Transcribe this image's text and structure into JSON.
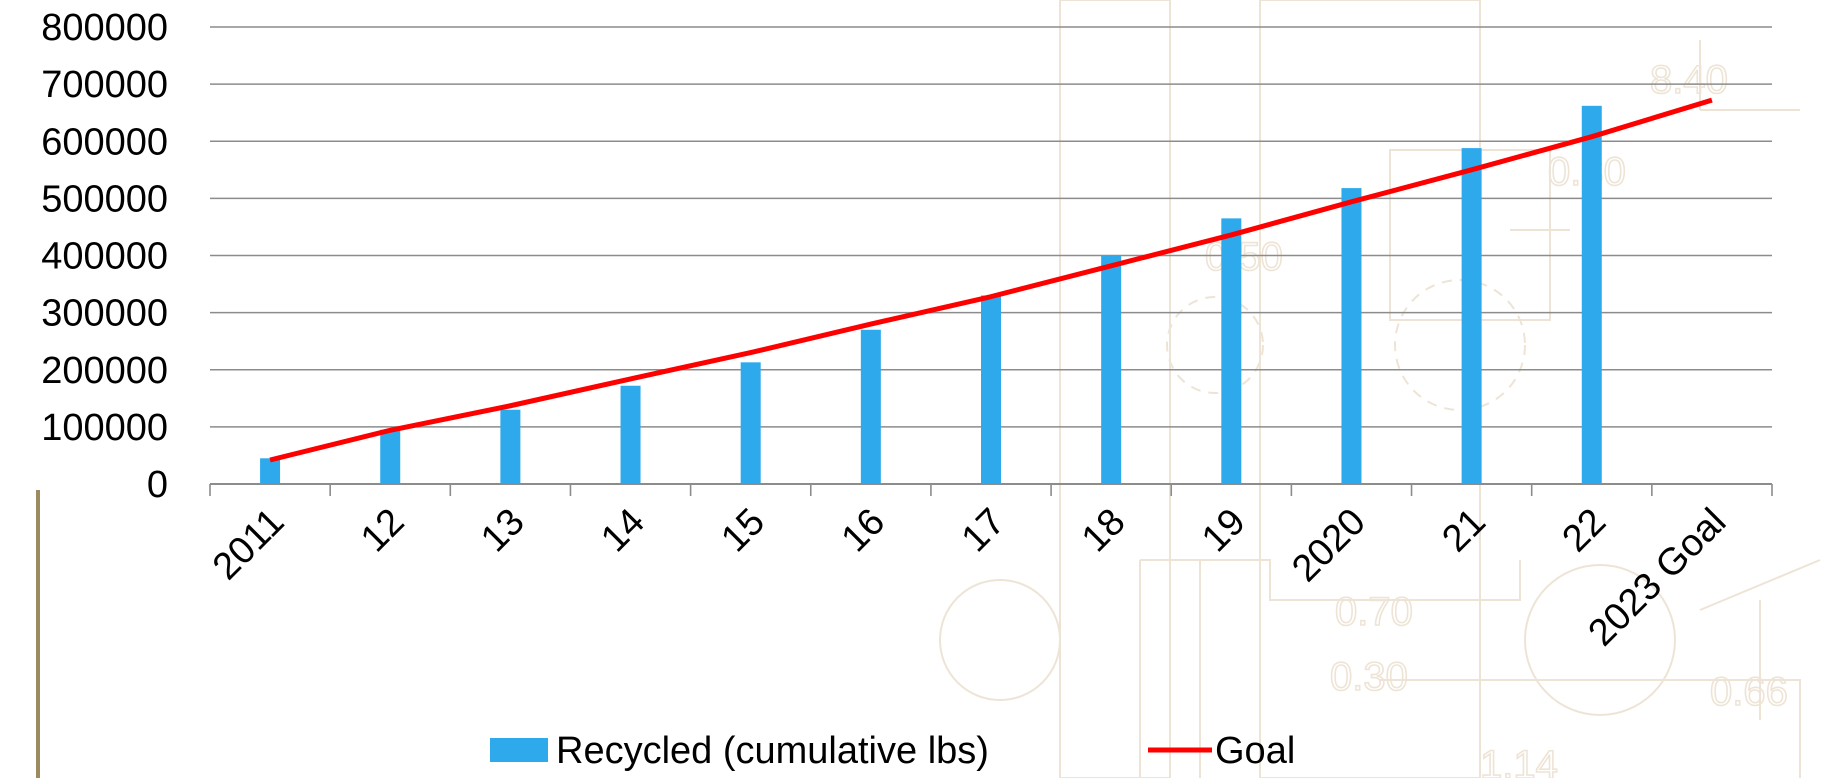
{
  "chart_data": {
    "type": "bar",
    "title": "",
    "xlabel": "",
    "ylabel": "",
    "categories": [
      "2011",
      "12",
      "13",
      "14",
      "15",
      "16",
      "17",
      "18",
      "19",
      "2020",
      "21",
      "22",
      "2023 Goal"
    ],
    "y_ticks": [
      "0",
      "100000",
      "200000",
      "300000",
      "400000",
      "500000",
      "600000",
      "700000",
      "800000"
    ],
    "ylim": [
      0,
      800000
    ],
    "grid": true,
    "legend_position": "bottom",
    "series": [
      {
        "name": "Recycled (cumulative lbs)",
        "type": "bar",
        "color": "#2eaaec",
        "values": [
          45000,
          95000,
          130000,
          172000,
          213000,
          270000,
          330000,
          400000,
          465000,
          518000,
          588000,
          662000,
          null
        ]
      },
      {
        "name": "Goal",
        "type": "line",
        "color": "#ff0000",
        "values": [
          42000,
          94000,
          137000,
          184000,
          230000,
          280000,
          328000,
          382000,
          436000,
          494000,
          550000,
          608000,
          672000
        ]
      }
    ]
  },
  "background_watermark": {
    "labels": [
      "8.40",
      "0.30",
      "0.50",
      "0.70",
      "0.30",
      "0.66",
      "1.14"
    ],
    "line_color": "#eee4d6"
  }
}
